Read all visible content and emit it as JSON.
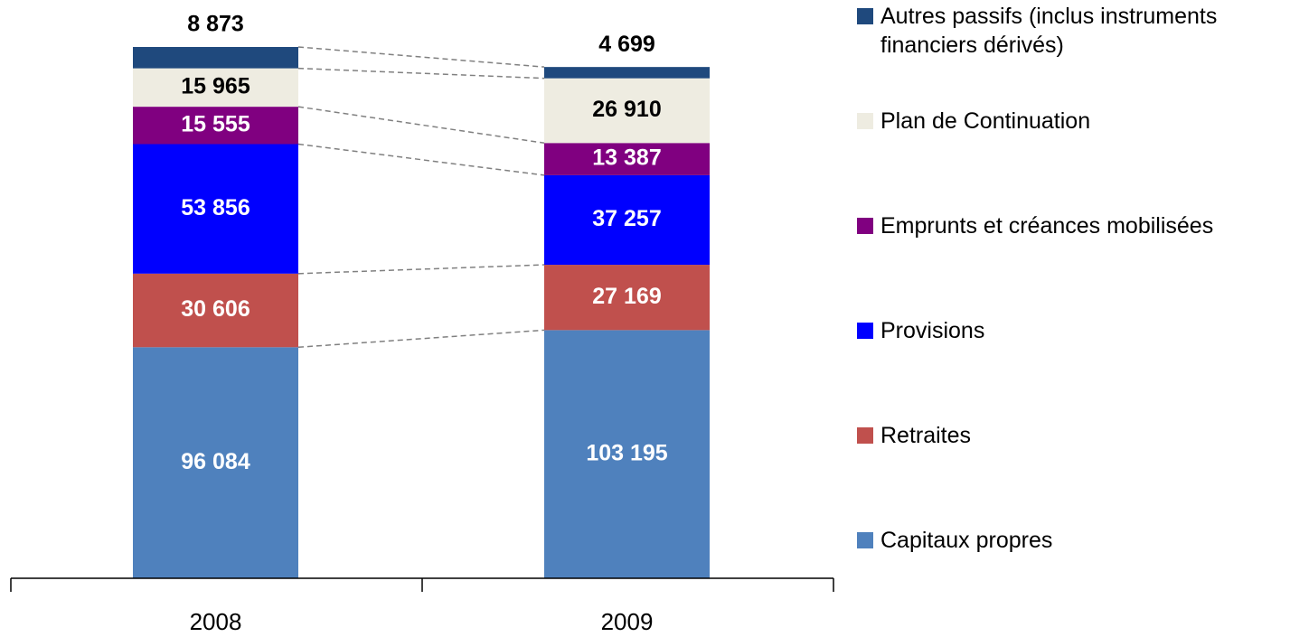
{
  "chart_data": {
    "type": "stacked-bar",
    "categories": [
      "2008",
      "2009"
    ],
    "series": [
      {
        "name": "Capitaux propres",
        "color": "#4f81bd",
        "values": [
          96084,
          103195
        ],
        "value_labels": [
          "96 084",
          "103 195"
        ]
      },
      {
        "name": "Retraites",
        "color": "#c0504d",
        "values": [
          30606,
          27169
        ],
        "value_labels": [
          "30 606",
          "27 169"
        ]
      },
      {
        "name": "Provisions",
        "color": "#0000ff",
        "values": [
          53856,
          37257
        ],
        "value_labels": [
          "53 856",
          "37 257"
        ]
      },
      {
        "name": "Emprunts et créances mobilisées",
        "color": "#800080",
        "values": [
          15555,
          13387
        ],
        "value_labels": [
          "15 555",
          "13 387"
        ]
      },
      {
        "name": "Plan de Continuation",
        "color": "#eeece1",
        "values": [
          15965,
          26910
        ],
        "value_labels": [
          "15 965",
          "26 910"
        ]
      },
      {
        "name": "Autres passifs (inclus instruments financiers dérivés)",
        "color": "#1f497d",
        "values": [
          8873,
          4699
        ],
        "value_labels": [
          "8 873",
          "4 699"
        ]
      }
    ]
  }
}
